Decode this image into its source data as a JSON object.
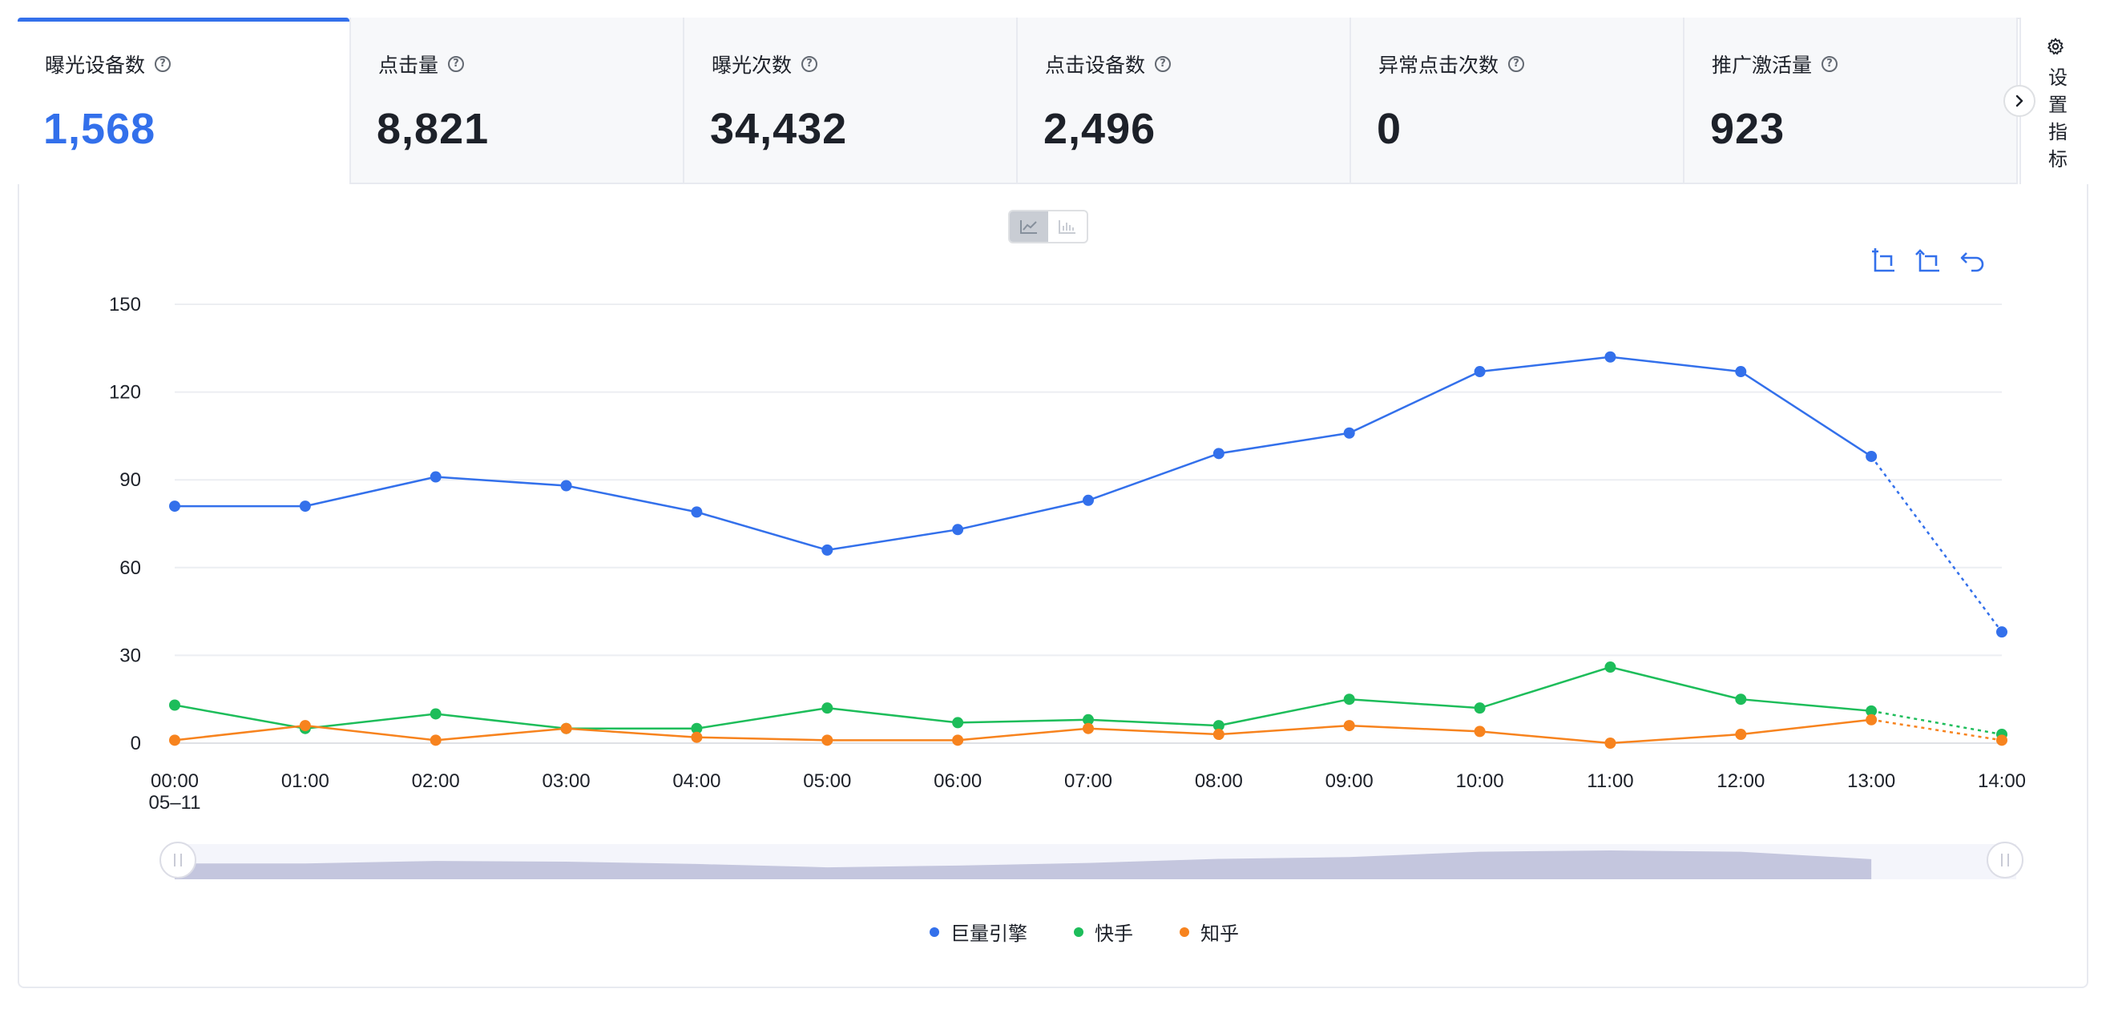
{
  "metrics": [
    {
      "label": "曝光设备数",
      "value": "1,568",
      "active": true
    },
    {
      "label": "点击量",
      "value": "8,821"
    },
    {
      "label": "曝光次数",
      "value": "34,432"
    },
    {
      "label": "点击设备数",
      "value": "2,496"
    },
    {
      "label": "异常点击次数",
      "value": "0"
    },
    {
      "label": "推广激活量",
      "value": "923"
    }
  ],
  "settings_label": "设置指标",
  "chart_view": {
    "options": [
      "line-chart-icon",
      "bar-chart-icon"
    ],
    "selected": "line-chart-icon"
  },
  "toolbar": {
    "icons": [
      "zoom-select-icon",
      "zoom-reset-icon",
      "undo-icon"
    ]
  },
  "colors": {
    "accent": "#3370eb",
    "series": [
      "#3370eb",
      "#1dbd5a",
      "#f7831e"
    ]
  },
  "chart_data": {
    "type": "line",
    "x": [
      "00:00",
      "01:00",
      "02:00",
      "03:00",
      "04:00",
      "05:00",
      "06:00",
      "07:00",
      "08:00",
      "09:00",
      "10:00",
      "11:00",
      "12:00",
      "13:00",
      "14:00"
    ],
    "x_sublabel_first": "05–11",
    "yticks": [
      0,
      30,
      60,
      90,
      120,
      150
    ],
    "ylim": [
      0,
      150
    ],
    "grid": true,
    "last_segment_dotted": true,
    "legend_position": "bottom-center",
    "series": [
      {
        "name": "巨量引擎",
        "color": "#3370eb",
        "values": [
          81,
          81,
          91,
          88,
          79,
          66,
          73,
          83,
          99,
          106,
          127,
          132,
          127,
          98,
          38
        ]
      },
      {
        "name": "快手",
        "color": "#1dbd5a",
        "values": [
          13,
          5,
          10,
          5,
          5,
          12,
          7,
          8,
          6,
          15,
          12,
          26,
          15,
          11,
          3
        ]
      },
      {
        "name": "知乎",
        "color": "#f7831e",
        "values": [
          1,
          6,
          1,
          5,
          2,
          1,
          1,
          5,
          3,
          6,
          4,
          0,
          3,
          8,
          1
        ]
      }
    ]
  }
}
